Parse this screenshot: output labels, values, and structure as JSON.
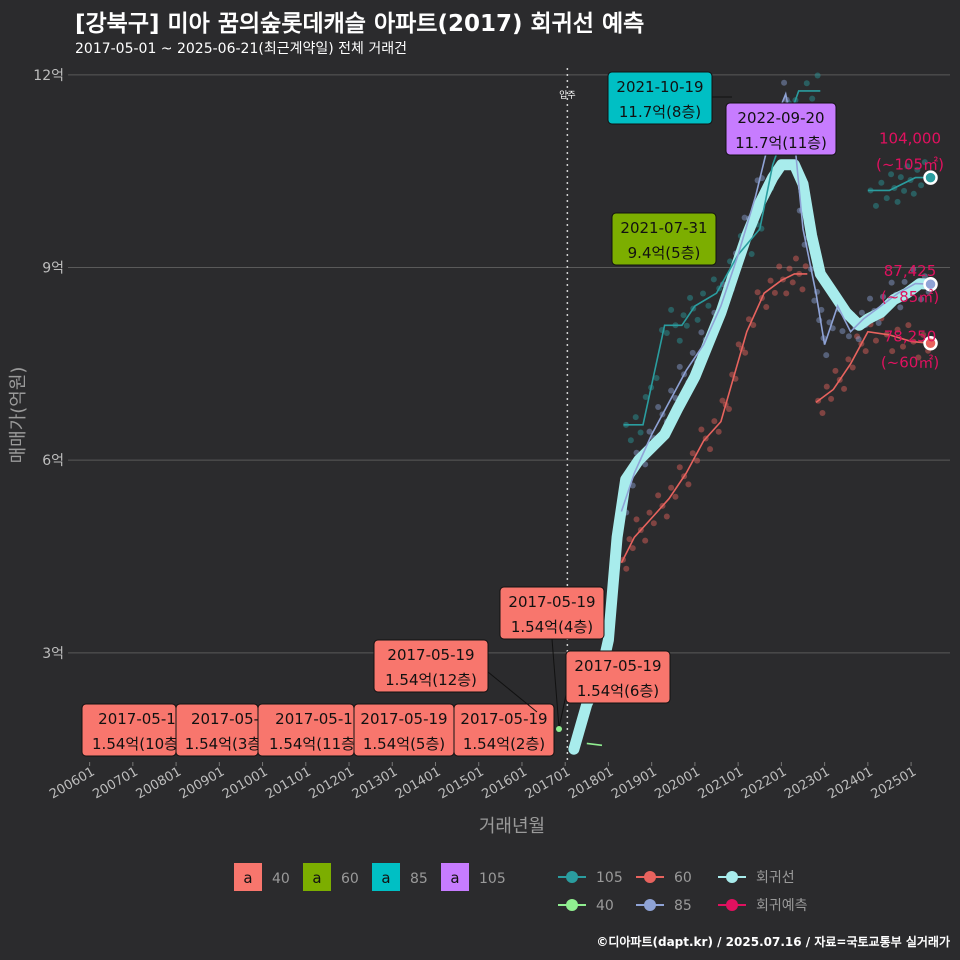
{
  "title": "[강북구] 미아 꿈의숲롯데캐슬 아파트(2017) 회귀선 예측",
  "subtitle": "2017-05-01 ~ 2025-06-21(최근계약일) 전체 거래건",
  "footer": "©디아파트(dapt.kr) / 2025.07.16 / 자료=국토교통부 실거래가",
  "colors": {
    "background": "#2b2b2d",
    "grid": "#5a5a5a",
    "s40": "#f8766d",
    "s60": "#7cae00",
    "s85": "#00bfc4",
    "s105": "#c77cff",
    "line105": "#2a9d9f",
    "line60": "#e8635e",
    "line40": "#90ee90",
    "line85": "#8fa3d6",
    "regression": "#a8ecec",
    "prediction": "#e0115f"
  },
  "chart_data": {
    "type": "line",
    "title": "[강북구] 미아 꿈의숲롯데캐슬 아파트(2017) 회귀선 예측",
    "subtitle": "2017-05-01 ~ 2025-06-21(최근계약일) 전체 거래건",
    "xlabel": "거래년월",
    "ylabel": "매매가(억원)",
    "x_ticks": [
      "200601",
      "200701",
      "200801",
      "200901",
      "201001",
      "201101",
      "201201",
      "201301",
      "201401",
      "201501",
      "201601",
      "201701",
      "201801",
      "201901",
      "202001",
      "202101",
      "202201",
      "202301",
      "202401",
      "202501"
    ],
    "y_ticks": [
      "3억",
      "6억",
      "9억",
      "12억"
    ],
    "y_tick_values": [
      3,
      6,
      9,
      12
    ],
    "xlim": [
      2005.5,
      2025.9
    ],
    "ylim": [
      1.3,
      12.2
    ],
    "grid": true,
    "move_in_label": "입주",
    "move_in_x": 2017.05,
    "series": [
      {
        "name": "회귀선",
        "kind": "regression",
        "points": [
          [
            2017.2,
            1.5
          ],
          [
            2017.5,
            2.2
          ],
          [
            2017.8,
            2.6
          ],
          [
            2018.0,
            3.2
          ],
          [
            2018.2,
            4.8
          ],
          [
            2018.4,
            5.7
          ],
          [
            2018.7,
            6.0
          ],
          [
            2019.0,
            6.2
          ],
          [
            2019.3,
            6.4
          ],
          [
            2019.6,
            6.8
          ],
          [
            2020.0,
            7.3
          ],
          [
            2020.3,
            7.8
          ],
          [
            2020.6,
            8.3
          ],
          [
            2020.9,
            8.9
          ],
          [
            2021.2,
            9.5
          ],
          [
            2021.5,
            10.0
          ],
          [
            2021.8,
            10.4
          ],
          [
            2022.0,
            10.6
          ],
          [
            2022.3,
            10.6
          ],
          [
            2022.5,
            10.3
          ],
          [
            2022.7,
            9.5
          ],
          [
            2022.9,
            8.9
          ],
          [
            2023.2,
            8.6
          ],
          [
            2023.5,
            8.3
          ],
          [
            2023.8,
            8.1
          ],
          [
            2024.0,
            8.2
          ],
          [
            2024.3,
            8.3
          ],
          [
            2024.6,
            8.5
          ],
          [
            2024.9,
            8.6
          ],
          [
            2025.2,
            8.75
          ],
          [
            2025.45,
            8.74
          ]
        ]
      },
      {
        "name": "105",
        "kind": "trend",
        "points": [
          [
            2018.35,
            6.55
          ],
          [
            2018.8,
            6.55
          ],
          [
            2019.3,
            8.1
          ],
          [
            2019.7,
            8.1
          ],
          [
            2020.0,
            8.4
          ],
          [
            2020.5,
            8.6
          ],
          [
            2021.0,
            9.2
          ],
          [
            2021.5,
            9.6
          ],
          [
            2021.8,
            10.6
          ],
          [
            2022.4,
            11.75
          ],
          [
            2022.9,
            11.75
          ]
        ]
      },
      {
        "name": "105",
        "kind": "trend",
        "points": [
          [
            2024.0,
            10.2
          ],
          [
            2024.5,
            10.2
          ],
          [
            2024.8,
            10.3
          ],
          [
            2025.1,
            10.4
          ],
          [
            2025.45,
            10.4
          ]
        ]
      },
      {
        "name": "60",
        "kind": "trend",
        "points": [
          [
            2018.3,
            4.4
          ],
          [
            2018.6,
            4.8
          ],
          [
            2019.0,
            5.1
          ],
          [
            2019.4,
            5.4
          ],
          [
            2019.8,
            5.8
          ],
          [
            2020.2,
            6.3
          ],
          [
            2020.6,
            6.6
          ],
          [
            2020.9,
            7.3
          ],
          [
            2021.2,
            8.0
          ],
          [
            2021.6,
            8.6
          ],
          [
            2022.0,
            8.8
          ],
          [
            2022.3,
            8.9
          ],
          [
            2022.6,
            8.9
          ]
        ]
      },
      {
        "name": "60",
        "kind": "trend",
        "points": [
          [
            2022.8,
            6.9
          ],
          [
            2023.2,
            7.1
          ],
          [
            2023.6,
            7.5
          ],
          [
            2024.0,
            8.0
          ],
          [
            2024.5,
            7.95
          ],
          [
            2025.0,
            7.85
          ],
          [
            2025.45,
            7.82
          ]
        ]
      },
      {
        "name": "85",
        "kind": "trend",
        "points": [
          [
            2018.3,
            5.2
          ],
          [
            2018.6,
            5.8
          ],
          [
            2019.0,
            6.4
          ],
          [
            2019.4,
            6.9
          ],
          [
            2019.8,
            7.4
          ],
          [
            2020.2,
            7.8
          ],
          [
            2020.6,
            8.4
          ],
          [
            2021.0,
            9.2
          ],
          [
            2021.4,
            10.1
          ],
          [
            2021.8,
            11.2
          ],
          [
            2022.1,
            11.7
          ],
          [
            2022.3,
            11.0
          ],
          [
            2022.5,
            9.6
          ],
          [
            2022.8,
            8.6
          ],
          [
            2023.0,
            7.8
          ],
          [
            2023.3,
            8.4
          ],
          [
            2023.6,
            8.0
          ],
          [
            2023.9,
            8.2
          ],
          [
            2024.3,
            8.4
          ],
          [
            2024.7,
            8.6
          ],
          [
            2025.1,
            8.75
          ],
          [
            2025.45,
            8.74
          ]
        ]
      },
      {
        "name": "40",
        "kind": "trend",
        "points": [
          [
            2017.5,
            1.59
          ],
          [
            2017.85,
            1.56
          ]
        ]
      }
    ],
    "annotations": [
      {
        "date": "2017-05-1",
        "text": "1.54억(10층",
        "area": "40"
      },
      {
        "date": "2017-05-",
        "text": "1.54억(3층",
        "area": "40"
      },
      {
        "date": "2017-05-1",
        "text": "1.54억(11층",
        "area": "40"
      },
      {
        "date": "2017-05-19",
        "text": "1.54억(5층)",
        "area": "40"
      },
      {
        "date": "2017-05-19",
        "text": "1.54억(2층)",
        "area": "40"
      },
      {
        "date": "2017-05-19",
        "text": "1.54억(12층)",
        "area": "40"
      },
      {
        "date": "2017-05-19",
        "text": "1.54억(4층)",
        "area": "40"
      },
      {
        "date": "2017-05-19",
        "text": "1.54억(6층)",
        "area": "40"
      },
      {
        "date": "2021-10-19",
        "text": "11.7억(8층)",
        "area": "85"
      },
      {
        "date": "2022-09-20",
        "text": "11.7억(11층)",
        "area": "105"
      },
      {
        "date": "2021-07-31",
        "text": "9.4억(5층)",
        "area": "60"
      }
    ],
    "predictions": [
      {
        "value": "104,000",
        "area": "(~105㎡)",
        "x": 2025.45,
        "y": 10.4,
        "color": "#2a9d9f"
      },
      {
        "value": "87,425",
        "area": "(~85㎡)",
        "x": 2025.45,
        "y": 8.74,
        "color": "#8fa3d6"
      },
      {
        "value": "78,250",
        "area": "(~60㎡)",
        "x": 2025.45,
        "y": 7.82,
        "color": "#e8635e"
      }
    ],
    "legend_label_boxes": [
      {
        "letter": "a",
        "label": "40",
        "color": "#f8766d"
      },
      {
        "letter": "a",
        "label": "60",
        "color": "#7cae00"
      },
      {
        "letter": "a",
        "label": "85",
        "color": "#00bfc4"
      },
      {
        "letter": "a",
        "label": "105",
        "color": "#c77cff"
      }
    ],
    "legend_lines": [
      {
        "label": "105",
        "color": "#2a9d9f"
      },
      {
        "label": "60",
        "color": "#e8635e"
      },
      {
        "label": "회귀선",
        "color": "#a8ecec"
      },
      {
        "label": "40",
        "color": "#90ee90"
      },
      {
        "label": "85",
        "color": "#8fa3d6"
      },
      {
        "label": "회귀예측",
        "color": "#e0115f"
      }
    ],
    "legend_position": "bottom"
  }
}
